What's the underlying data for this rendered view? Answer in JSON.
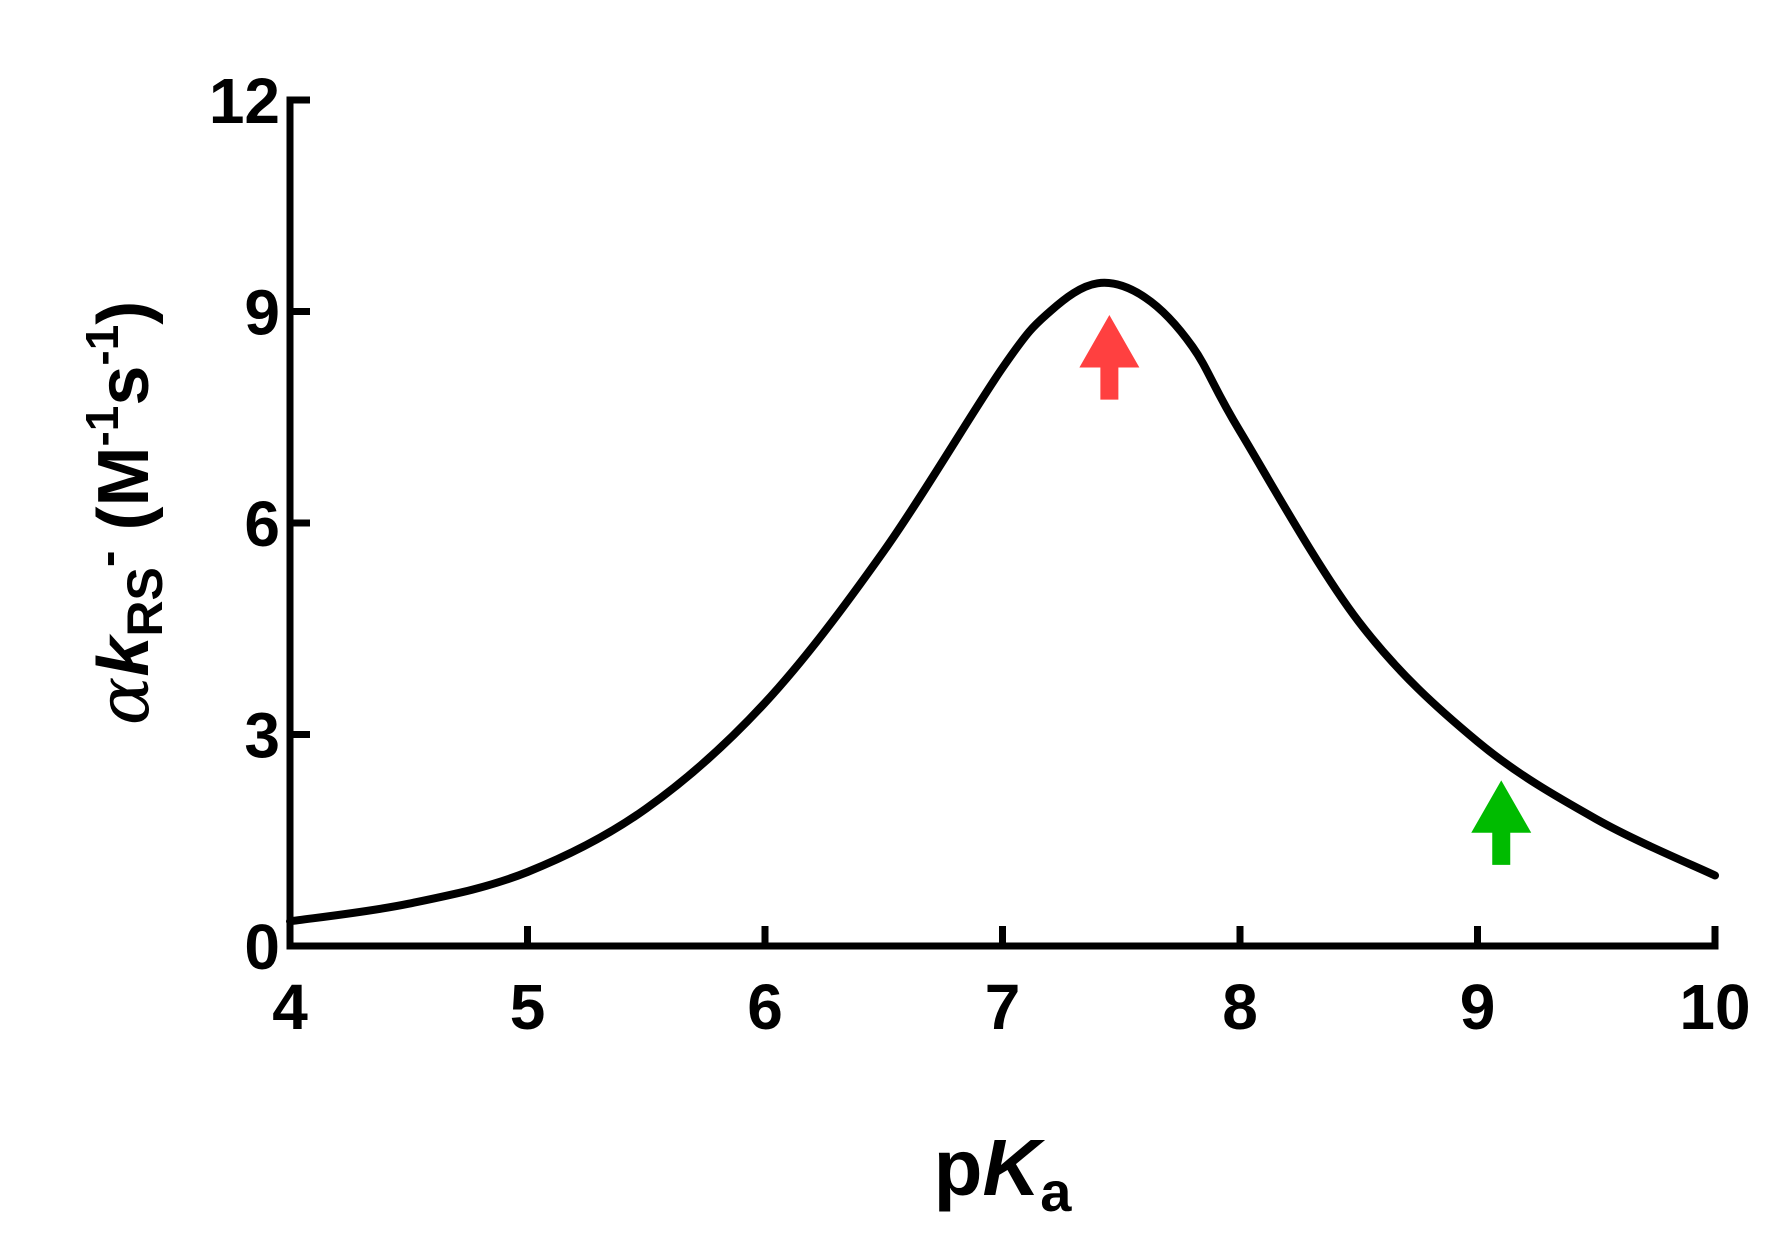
{
  "chart_data": {
    "type": "line",
    "xlabel": {
      "prefix": "p",
      "italic": "K",
      "sub": "a"
    },
    "ylabel": {
      "alpha": "α",
      "k": "k",
      "k_sub": "RS",
      "charge": "-",
      "units_open": " (M",
      "exp1": "-1",
      "s": "s",
      "exp2": "-1",
      "units_close": ")"
    },
    "xlim": [
      4,
      10
    ],
    "ylim": [
      0,
      12
    ],
    "xticks": [
      4,
      5,
      6,
      7,
      8,
      9,
      10
    ],
    "yticks": [
      0,
      3,
      6,
      9,
      12
    ],
    "xtick_labels": [
      "4",
      "5",
      "6",
      "7",
      "8",
      "9",
      "10"
    ],
    "ytick_labels": [
      "0",
      "3",
      "6",
      "9",
      "12"
    ],
    "grid": false,
    "series": [
      {
        "color": "#000000",
        "x": [
          4.0,
          4.5,
          5.0,
          5.5,
          6.0,
          6.5,
          7.0,
          7.2,
          7.4,
          7.6,
          7.8,
          8.0,
          8.5,
          9.0,
          9.5,
          10.0
        ],
        "y": [
          0.35,
          0.6,
          1.05,
          1.95,
          3.45,
          5.6,
          8.2,
          9.0,
          9.4,
          9.2,
          8.5,
          7.3,
          4.6,
          2.9,
          1.8,
          1.0
        ]
      }
    ],
    "markers": [
      {
        "name": "red-arrow",
        "x": 7.45,
        "y_tip": 8.95,
        "y_base": 7.75,
        "color": "#ff4040"
      },
      {
        "name": "green-arrow",
        "x": 9.1,
        "y_tip": 2.35,
        "y_base": 1.15,
        "color": "#00bb00"
      }
    ]
  }
}
